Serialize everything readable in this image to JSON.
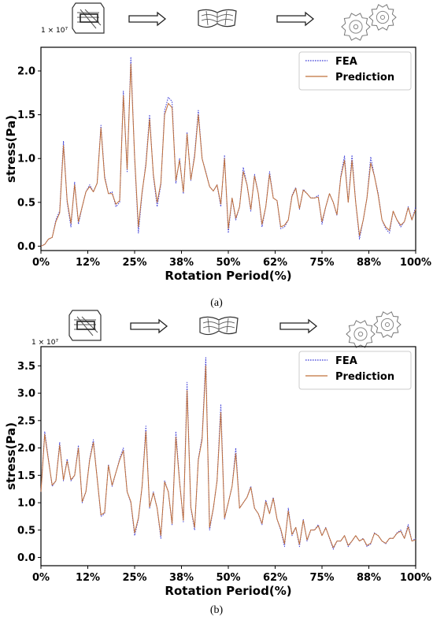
{
  "colors": {
    "fea": "#3b3bd6",
    "prediction": "#c0703a",
    "axis": "#000000"
  },
  "icons": [
    "mesh-model-icon",
    "right-arrow-icon",
    "deformed-mesh-icon",
    "right-arrow-icon",
    "gears-icon"
  ],
  "chart_data": [
    {
      "type": "line",
      "caption": "(a)",
      "multiplier": "1 × 10⁷",
      "xlabel": "Rotation Period(%)",
      "ylabel": "stress(Pa)",
      "xlim": [
        0,
        100
      ],
      "ylim": [
        -0.05,
        2.27
      ],
      "xtick_values": [
        0,
        12.5,
        25,
        37.5,
        50,
        62.5,
        75,
        87.5,
        100
      ],
      "xtick_labels": [
        "0%",
        "12%",
        "25%",
        "38%",
        "50%",
        "62%",
        "75%",
        "88%",
        "100%"
      ],
      "ytick_values": [
        0.0,
        0.5,
        1.0,
        1.5,
        2.0
      ],
      "ytick_labels": [
        "0.0",
        "0.5",
        "1.0",
        "1.5",
        "2.0"
      ],
      "legend_position": "top-right",
      "series": [
        {
          "name": "FEA",
          "style": "dotted",
          "x": [
            0,
            1,
            2,
            3,
            4,
            5,
            6,
            7,
            8,
            9,
            10,
            11,
            12,
            13,
            14,
            15,
            16,
            17,
            18,
            19,
            20,
            21,
            22,
            23,
            24,
            25,
            26,
            27,
            28,
            29,
            30,
            31,
            32,
            33,
            34,
            35,
            36,
            37,
            38,
            39,
            40,
            41,
            42,
            43,
            44,
            45,
            46,
            47,
            48,
            49,
            50,
            51,
            52,
            53,
            54,
            55,
            56,
            57,
            58,
            59,
            60,
            61,
            62,
            63,
            64,
            65,
            66,
            67,
            68,
            69,
            70,
            71,
            72,
            73,
            74,
            75,
            76,
            77,
            78,
            79,
            80,
            81,
            82,
            83,
            84,
            85,
            86,
            87,
            88,
            89,
            90,
            91,
            92,
            93,
            94,
            95,
            96,
            97,
            98,
            99,
            100
          ],
          "y": [
            0.0,
            0.02,
            0.08,
            0.1,
            0.3,
            0.4,
            1.2,
            0.5,
            0.22,
            0.73,
            0.25,
            0.45,
            0.62,
            0.7,
            0.62,
            0.72,
            1.38,
            0.8,
            0.6,
            0.62,
            0.45,
            0.5,
            1.77,
            0.85,
            2.16,
            1.0,
            0.15,
            0.6,
            0.95,
            1.5,
            0.8,
            0.45,
            0.7,
            1.55,
            1.7,
            1.65,
            0.72,
            1.0,
            0.6,
            1.3,
            0.75,
            1.05,
            1.55,
            1.0,
            0.85,
            0.68,
            0.63,
            0.7,
            0.45,
            1.04,
            0.15,
            0.55,
            0.3,
            0.45,
            0.9,
            0.7,
            0.4,
            0.82,
            0.6,
            0.22,
            0.45,
            0.85,
            0.55,
            0.52,
            0.2,
            0.22,
            0.3,
            0.58,
            0.67,
            0.42,
            0.65,
            0.6,
            0.55,
            0.55,
            0.58,
            0.25,
            0.45,
            0.6,
            0.5,
            0.35,
            0.8,
            1.03,
            0.5,
            1.04,
            0.5,
            0.08,
            0.3,
            0.55,
            1.02,
            0.8,
            0.6,
            0.3,
            0.2,
            0.15,
            0.4,
            0.3,
            0.22,
            0.28,
            0.45,
            0.3,
            0.45
          ]
        },
        {
          "name": "Prediction",
          "style": "solid",
          "x": [
            0,
            1,
            2,
            3,
            4,
            5,
            6,
            7,
            8,
            9,
            10,
            11,
            12,
            13,
            14,
            15,
            16,
            17,
            18,
            19,
            20,
            21,
            22,
            23,
            24,
            25,
            26,
            27,
            28,
            29,
            30,
            31,
            32,
            33,
            34,
            35,
            36,
            37,
            38,
            39,
            40,
            41,
            42,
            43,
            44,
            45,
            46,
            47,
            48,
            49,
            50,
            51,
            52,
            53,
            54,
            55,
            56,
            57,
            58,
            59,
            60,
            61,
            62,
            63,
            64,
            65,
            66,
            67,
            68,
            69,
            70,
            71,
            72,
            73,
            74,
            75,
            76,
            77,
            78,
            79,
            80,
            81,
            82,
            83,
            84,
            85,
            86,
            87,
            88,
            89,
            90,
            91,
            92,
            93,
            94,
            95,
            96,
            97,
            98,
            99,
            100
          ],
          "y": [
            0.0,
            0.02,
            0.08,
            0.1,
            0.28,
            0.38,
            1.15,
            0.52,
            0.26,
            0.7,
            0.28,
            0.45,
            0.62,
            0.68,
            0.62,
            0.72,
            1.35,
            0.78,
            0.6,
            0.6,
            0.48,
            0.52,
            1.72,
            0.88,
            2.08,
            1.02,
            0.22,
            0.62,
            0.92,
            1.45,
            0.82,
            0.5,
            0.72,
            1.5,
            1.63,
            1.58,
            0.75,
            0.98,
            0.62,
            1.28,
            0.76,
            1.02,
            1.5,
            1.0,
            0.84,
            0.68,
            0.63,
            0.7,
            0.48,
            1.0,
            0.2,
            0.55,
            0.32,
            0.45,
            0.85,
            0.7,
            0.42,
            0.8,
            0.6,
            0.25,
            0.45,
            0.82,
            0.55,
            0.52,
            0.22,
            0.24,
            0.3,
            0.57,
            0.66,
            0.43,
            0.64,
            0.6,
            0.55,
            0.55,
            0.56,
            0.28,
            0.45,
            0.6,
            0.5,
            0.36,
            0.78,
            0.98,
            0.5,
            0.98,
            0.5,
            0.12,
            0.3,
            0.55,
            0.95,
            0.8,
            0.58,
            0.3,
            0.22,
            0.18,
            0.4,
            0.3,
            0.24,
            0.28,
            0.44,
            0.3,
            0.42
          ]
        }
      ]
    },
    {
      "type": "line",
      "caption": "(b)",
      "multiplier": "1 × 10⁷",
      "xlabel": "Rotation Period(%)",
      "ylabel": "stress(Pa)",
      "xlim": [
        0,
        100
      ],
      "ylim": [
        -0.15,
        3.85
      ],
      "xtick_values": [
        0,
        12.5,
        25,
        37.5,
        50,
        62.5,
        75,
        87.5,
        100
      ],
      "xtick_labels": [
        "0%",
        "12%",
        "25%",
        "38%",
        "50%",
        "62%",
        "75%",
        "88%",
        "100%"
      ],
      "ytick_values": [
        0.0,
        0.5,
        1.0,
        1.5,
        2.0,
        2.5,
        3.0,
        3.5
      ],
      "ytick_labels": [
        "0.0",
        "0.5",
        "1.0",
        "1.5",
        "2.0",
        "2.5",
        "3.0",
        "3.5"
      ],
      "legend_position": "top-right",
      "series": [
        {
          "name": "FEA",
          "style": "dotted",
          "x": [
            0,
            1,
            2,
            3,
            4,
            5,
            6,
            7,
            8,
            9,
            10,
            11,
            12,
            13,
            14,
            15,
            16,
            17,
            18,
            19,
            20,
            21,
            22,
            23,
            24,
            25,
            26,
            27,
            28,
            29,
            30,
            31,
            32,
            33,
            34,
            35,
            36,
            37,
            38,
            39,
            40,
            41,
            42,
            43,
            44,
            45,
            46,
            47,
            48,
            49,
            50,
            51,
            52,
            53,
            54,
            55,
            56,
            57,
            58,
            59,
            60,
            61,
            62,
            63,
            64,
            65,
            66,
            67,
            68,
            69,
            70,
            71,
            72,
            73,
            74,
            75,
            76,
            77,
            78,
            79,
            80,
            81,
            82,
            83,
            84,
            85,
            86,
            87,
            88,
            89,
            90,
            91,
            92,
            93,
            94,
            95,
            96,
            97,
            98,
            99,
            100
          ],
          "y": [
            1.2,
            2.3,
            1.8,
            1.3,
            1.4,
            2.1,
            1.4,
            1.8,
            1.4,
            1.5,
            2.05,
            1.0,
            1.2,
            1.8,
            2.15,
            1.45,
            0.75,
            0.8,
            1.7,
            1.3,
            1.55,
            1.8,
            2.0,
            1.2,
            1.0,
            0.4,
            0.7,
            1.3,
            2.4,
            0.9,
            1.2,
            0.9,
            0.35,
            1.4,
            1.2,
            0.6,
            2.3,
            1.4,
            0.65,
            3.2,
            0.9,
            0.5,
            1.8,
            2.2,
            3.65,
            0.5,
            0.9,
            1.4,
            2.8,
            0.7,
            1.0,
            1.3,
            2.0,
            0.9,
            1.0,
            1.1,
            1.3,
            0.9,
            0.8,
            0.6,
            1.05,
            0.8,
            1.1,
            0.7,
            0.5,
            0.2,
            0.9,
            0.4,
            0.55,
            0.2,
            0.7,
            0.3,
            0.5,
            0.5,
            0.6,
            0.4,
            0.55,
            0.35,
            0.15,
            0.3,
            0.3,
            0.4,
            0.2,
            0.3,
            0.4,
            0.3,
            0.35,
            0.2,
            0.25,
            0.45,
            0.4,
            0.3,
            0.25,
            0.35,
            0.35,
            0.45,
            0.5,
            0.35,
            0.6,
            0.3,
            0.35
          ]
        },
        {
          "name": "Prediction",
          "style": "solid",
          "x": [
            0,
            1,
            2,
            3,
            4,
            5,
            6,
            7,
            8,
            9,
            10,
            11,
            12,
            13,
            14,
            15,
            16,
            17,
            18,
            19,
            20,
            21,
            22,
            23,
            24,
            25,
            26,
            27,
            28,
            29,
            30,
            31,
            32,
            33,
            34,
            35,
            36,
            37,
            38,
            39,
            40,
            41,
            42,
            43,
            44,
            45,
            46,
            47,
            48,
            49,
            50,
            51,
            52,
            53,
            54,
            55,
            56,
            57,
            58,
            59,
            60,
            61,
            62,
            63,
            64,
            65,
            66,
            67,
            68,
            69,
            70,
            71,
            72,
            73,
            74,
            75,
            76,
            77,
            78,
            79,
            80,
            81,
            82,
            83,
            84,
            85,
            86,
            87,
            88,
            89,
            90,
            91,
            92,
            93,
            94,
            95,
            96,
            97,
            98,
            99,
            100
          ],
          "y": [
            1.2,
            2.25,
            1.78,
            1.32,
            1.4,
            2.05,
            1.42,
            1.76,
            1.42,
            1.5,
            2.0,
            1.02,
            1.2,
            1.78,
            2.1,
            1.45,
            0.78,
            0.82,
            1.68,
            1.32,
            1.55,
            1.78,
            1.95,
            1.2,
            1.02,
            0.45,
            0.72,
            1.3,
            2.3,
            0.92,
            1.18,
            0.9,
            0.4,
            1.38,
            1.2,
            0.62,
            2.2,
            1.38,
            0.68,
            3.05,
            0.92,
            0.55,
            1.78,
            2.15,
            3.5,
            0.55,
            0.9,
            1.4,
            2.65,
            0.72,
            1.0,
            1.3,
            1.9,
            0.9,
            1.0,
            1.1,
            1.28,
            0.9,
            0.8,
            0.62,
            1.02,
            0.8,
            1.08,
            0.7,
            0.52,
            0.25,
            0.85,
            0.42,
            0.55,
            0.24,
            0.68,
            0.32,
            0.5,
            0.5,
            0.58,
            0.4,
            0.54,
            0.36,
            0.18,
            0.3,
            0.3,
            0.4,
            0.22,
            0.3,
            0.4,
            0.3,
            0.34,
            0.22,
            0.26,
            0.44,
            0.4,
            0.3,
            0.26,
            0.35,
            0.35,
            0.44,
            0.48,
            0.35,
            0.56,
            0.3,
            0.32
          ]
        }
      ]
    }
  ]
}
